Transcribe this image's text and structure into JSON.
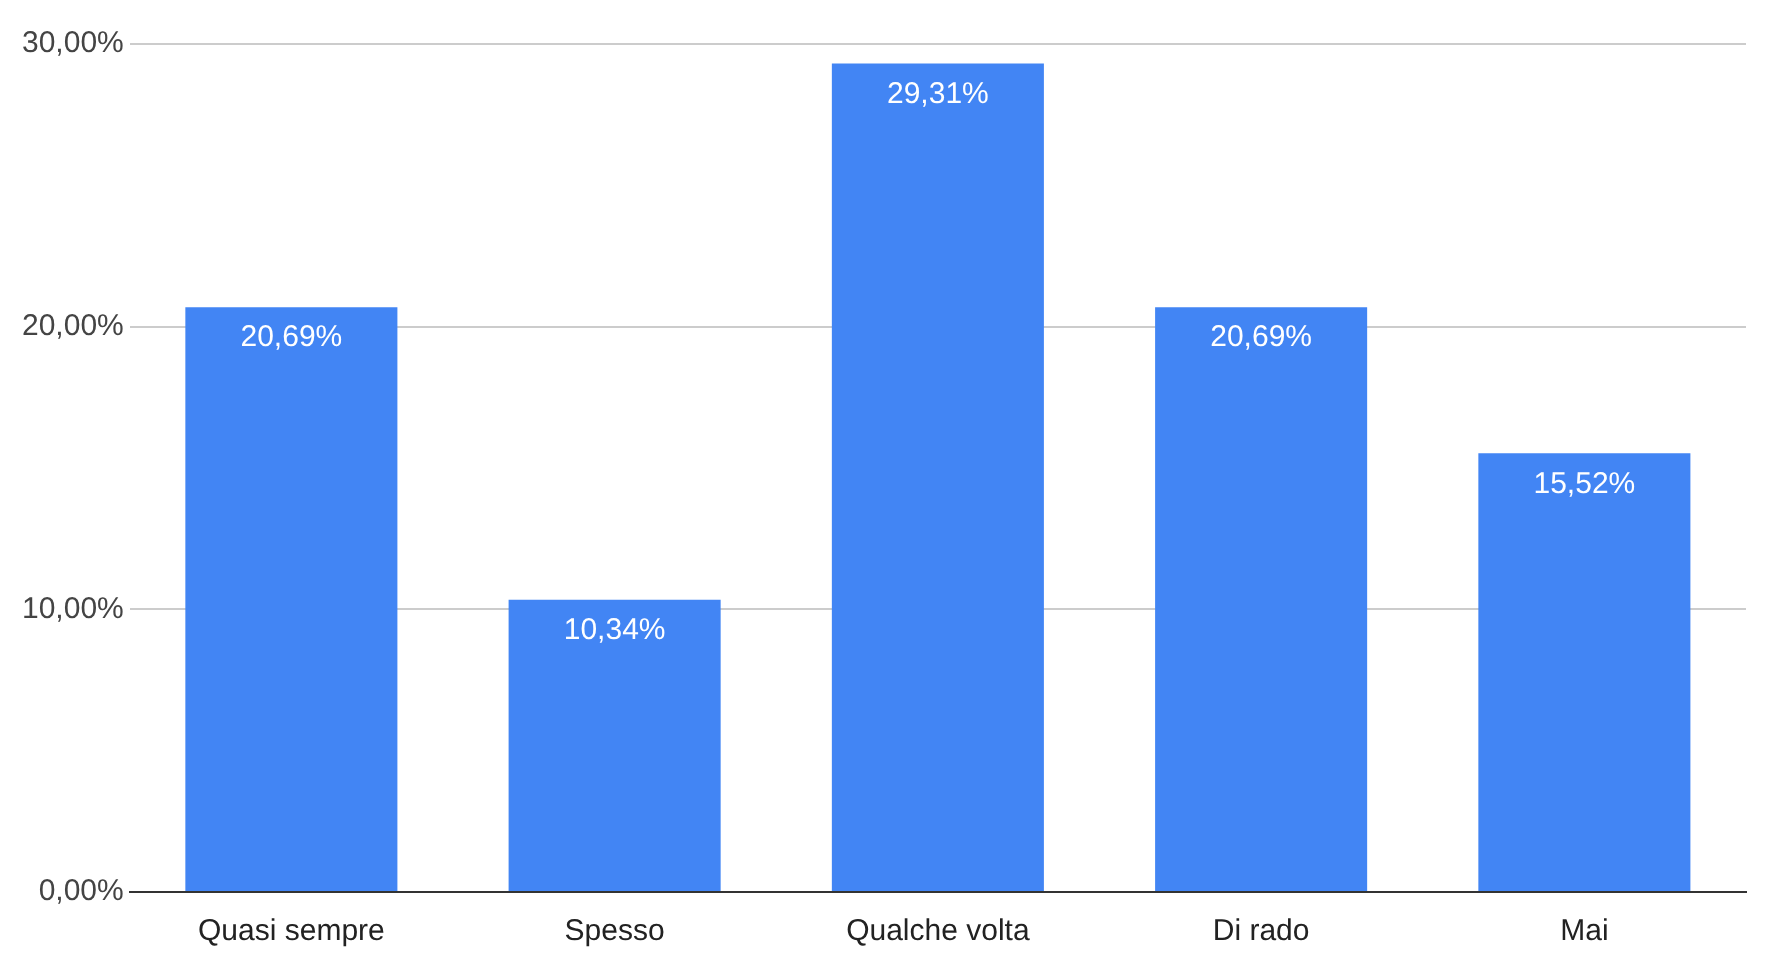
{
  "chart_data": {
    "type": "bar",
    "categories": [
      "Quasi sempre",
      "Spesso",
      "Qualche volta",
      "Di rado",
      "Mai"
    ],
    "values": [
      20.69,
      10.34,
      29.31,
      20.69,
      15.52
    ],
    "value_labels": [
      "20,69%",
      "10,34%",
      "29,31%",
      "20,69%",
      "15,52%"
    ],
    "color": "#4285f4",
    "ylim": [
      0,
      30
    ],
    "yticks": [
      {
        "value": 0,
        "label": "0,00%"
      },
      {
        "value": 10,
        "label": "10,00%"
      },
      {
        "value": 20,
        "label": "20,00%"
      },
      {
        "value": 30,
        "label": "30,00%"
      }
    ],
    "grid": "y",
    "legend": false
  }
}
